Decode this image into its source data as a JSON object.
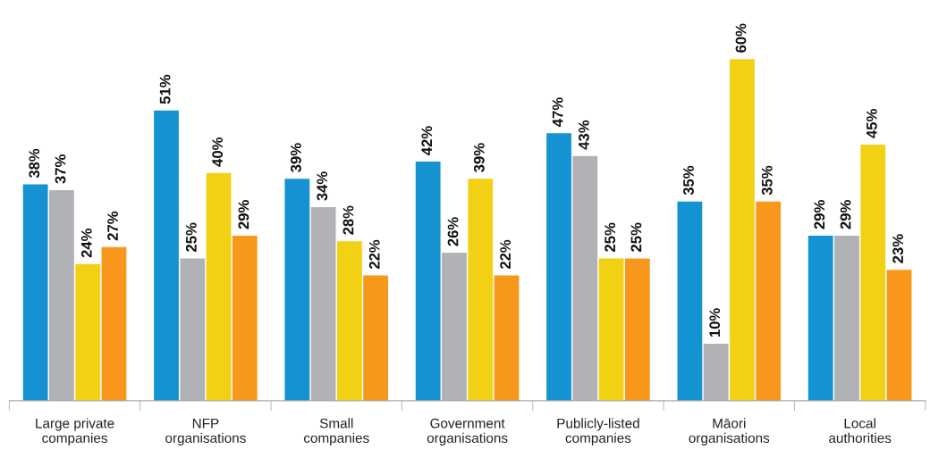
{
  "chart_data": {
    "type": "bar",
    "categories": [
      "Large private\ncompanies",
      "NFP\norganisations",
      "Small\ncompanies",
      "Government\norganisations",
      "Publicly-listed\ncompanies",
      "Māori\norganisations",
      "Local\nauthorities"
    ],
    "series": [
      {
        "color": "#1592d2",
        "values": [
          38,
          51,
          39,
          42,
          47,
          35,
          29
        ],
        "value_labels": [
          "38%",
          "51%",
          "39%",
          "42%",
          "47%",
          "35%",
          "29%"
        ]
      },
      {
        "color": "#b1b2b6",
        "values": [
          37,
          25,
          34,
          26,
          43,
          10,
          29
        ],
        "value_labels": [
          "37%",
          "25%",
          "34%",
          "26%",
          "43%",
          "10%",
          "29%"
        ]
      },
      {
        "color": "#f2d014",
        "values": [
          24,
          40,
          28,
          39,
          25,
          60,
          45
        ],
        "value_labels": [
          "24%",
          "40%",
          "28%",
          "39%",
          "25%",
          "60%",
          "45%"
        ]
      },
      {
        "color": "#f7981d",
        "values": [
          27,
          29,
          22,
          22,
          25,
          35,
          23
        ],
        "value_labels": [
          "27%",
          "29%",
          "22%",
          "22%",
          "25%",
          "35%",
          "23%"
        ]
      }
    ],
    "grid": false,
    "legend": false
  }
}
